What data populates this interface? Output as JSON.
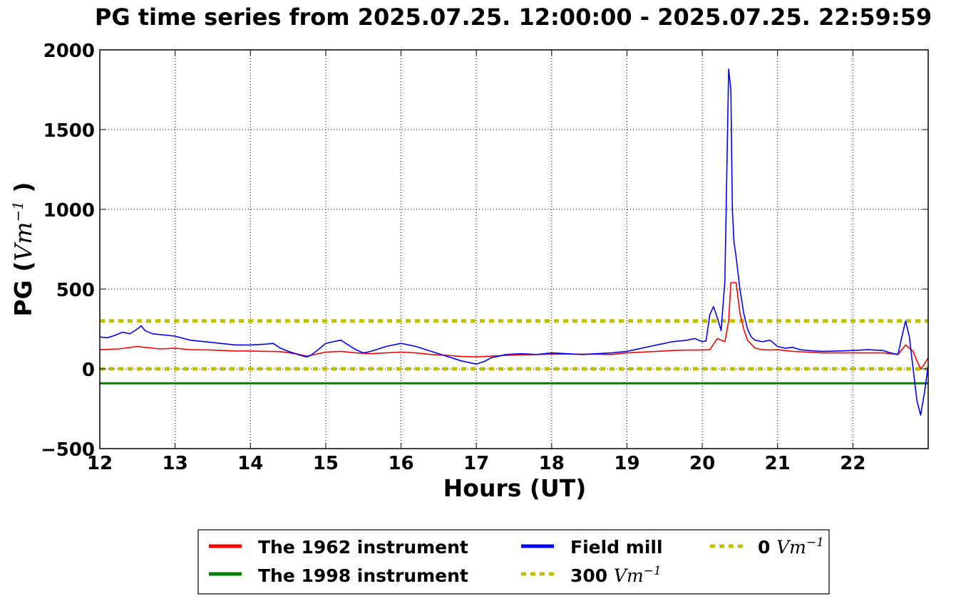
{
  "chart_data": {
    "type": "line",
    "title": "PG time series from 2025.07.25. 12:00:00 - 2025.07.25. 22:59:59",
    "xlabel": "Hours (UT)",
    "ylabel": {
      "prefix": "PG (",
      "unit": "Vm",
      "exp": "−1",
      "suffix": " )"
    },
    "xlim": [
      12,
      23
    ],
    "ylim": [
      -500,
      2000
    ],
    "xticks": [
      12,
      13,
      14,
      15,
      16,
      17,
      18,
      19,
      20,
      21,
      22
    ],
    "yticks": [
      -500,
      0,
      500,
      1000,
      1500,
      2000
    ],
    "ytick_labels": [
      "−500",
      "0",
      "500",
      "1000",
      "1500",
      "2000"
    ],
    "grid": true,
    "legend_position": "below",
    "series": [
      {
        "name": "The 1962 instrument",
        "color": "#ff0000",
        "style": "solid",
        "x": [
          12.0,
          12.25,
          12.5,
          12.6,
          12.8,
          13.0,
          13.2,
          13.5,
          13.8,
          14.0,
          14.2,
          14.4,
          14.6,
          14.75,
          14.9,
          15.0,
          15.2,
          15.4,
          15.6,
          15.8,
          16.0,
          16.2,
          16.4,
          16.6,
          16.8,
          17.0,
          17.2,
          17.4,
          17.6,
          17.8,
          18.0,
          18.2,
          18.4,
          18.6,
          18.8,
          19.0,
          19.2,
          19.4,
          19.6,
          19.8,
          20.0,
          20.1,
          20.2,
          20.3,
          20.35,
          20.38,
          20.45,
          20.5,
          20.55,
          20.6,
          20.7,
          20.8,
          20.9,
          21.0,
          21.2,
          21.4,
          21.6,
          21.8,
          22.0,
          22.2,
          22.4,
          22.5,
          22.6,
          22.7,
          22.8,
          22.85,
          22.9,
          22.95,
          23.0
        ],
        "y": [
          120,
          125,
          140,
          135,
          125,
          130,
          120,
          118,
          112,
          112,
          110,
          108,
          95,
          80,
          95,
          105,
          110,
          100,
          95,
          100,
          105,
          100,
          90,
          85,
          78,
          75,
          80,
          85,
          88,
          90,
          92,
          93,
          92,
          92,
          90,
          100,
          105,
          110,
          115,
          118,
          118,
          120,
          190,
          170,
          300,
          540,
          540,
          350,
          250,
          180,
          130,
          120,
          118,
          120,
          110,
          105,
          100,
          100,
          100,
          100,
          100,
          95,
          90,
          150,
          110,
          50,
          0,
          30,
          70
        ]
      },
      {
        "name": "The 1998 instrument",
        "color": "#008000",
        "style": "solid",
        "x": [
          12.0,
          23.0
        ],
        "y": [
          -90,
          -90
        ]
      },
      {
        "name": "Field mill",
        "color": "#0000ff",
        "style": "solid",
        "x": [
          12.0,
          12.1,
          12.2,
          12.3,
          12.4,
          12.5,
          12.55,
          12.6,
          12.7,
          12.8,
          12.9,
          13.0,
          13.2,
          13.4,
          13.6,
          13.8,
          14.0,
          14.2,
          14.3,
          14.4,
          14.5,
          14.6,
          14.7,
          14.75,
          14.8,
          14.9,
          15.0,
          15.1,
          15.2,
          15.3,
          15.4,
          15.5,
          15.6,
          15.8,
          16.0,
          16.2,
          16.4,
          16.6,
          16.8,
          16.9,
          17.0,
          17.1,
          17.2,
          17.4,
          17.6,
          17.8,
          18.0,
          18.2,
          18.4,
          18.6,
          18.8,
          19.0,
          19.2,
          19.4,
          19.6,
          19.8,
          19.9,
          20.0,
          20.05,
          20.1,
          20.15,
          20.2,
          20.25,
          20.3,
          20.35,
          20.38,
          20.4,
          20.42,
          20.45,
          20.48,
          20.5,
          20.55,
          20.6,
          20.65,
          20.7,
          20.8,
          20.9,
          21.0,
          21.1,
          21.2,
          21.3,
          21.4,
          21.6,
          21.8,
          22.0,
          22.2,
          22.4,
          22.5,
          22.6,
          22.65,
          22.7,
          22.75,
          22.8,
          22.85,
          22.9,
          22.95,
          23.0
        ],
        "y": [
          200,
          195,
          210,
          230,
          220,
          250,
          270,
          240,
          220,
          215,
          210,
          205,
          180,
          170,
          160,
          150,
          150,
          155,
          160,
          130,
          110,
          95,
          80,
          75,
          85,
          120,
          160,
          170,
          180,
          150,
          120,
          100,
          110,
          140,
          160,
          140,
          110,
          80,
          50,
          40,
          30,
          45,
          70,
          90,
          95,
          90,
          100,
          95,
          90,
          95,
          100,
          110,
          130,
          150,
          170,
          180,
          190,
          170,
          175,
          340,
          390,
          320,
          240,
          550,
          1880,
          1750,
          1000,
          800,
          700,
          580,
          500,
          350,
          250,
          200,
          180,
          170,
          180,
          140,
          130,
          135,
          120,
          115,
          110,
          112,
          115,
          120,
          115,
          100,
          90,
          200,
          300,
          200,
          0,
          -200,
          -290,
          -150,
          20
        ]
      },
      {
        "name": "300",
        "unit": "Vm",
        "exp": "−1",
        "color": "#bfbf00",
        "style": "dotted",
        "x": [
          12.0,
          23.0
        ],
        "y": [
          300,
          300
        ]
      },
      {
        "name": "0",
        "unit": "Vm",
        "exp": "−1",
        "color": "#bfbf00",
        "style": "dotted",
        "x": [
          12.0,
          23.0
        ],
        "y": [
          0,
          0
        ]
      }
    ]
  }
}
